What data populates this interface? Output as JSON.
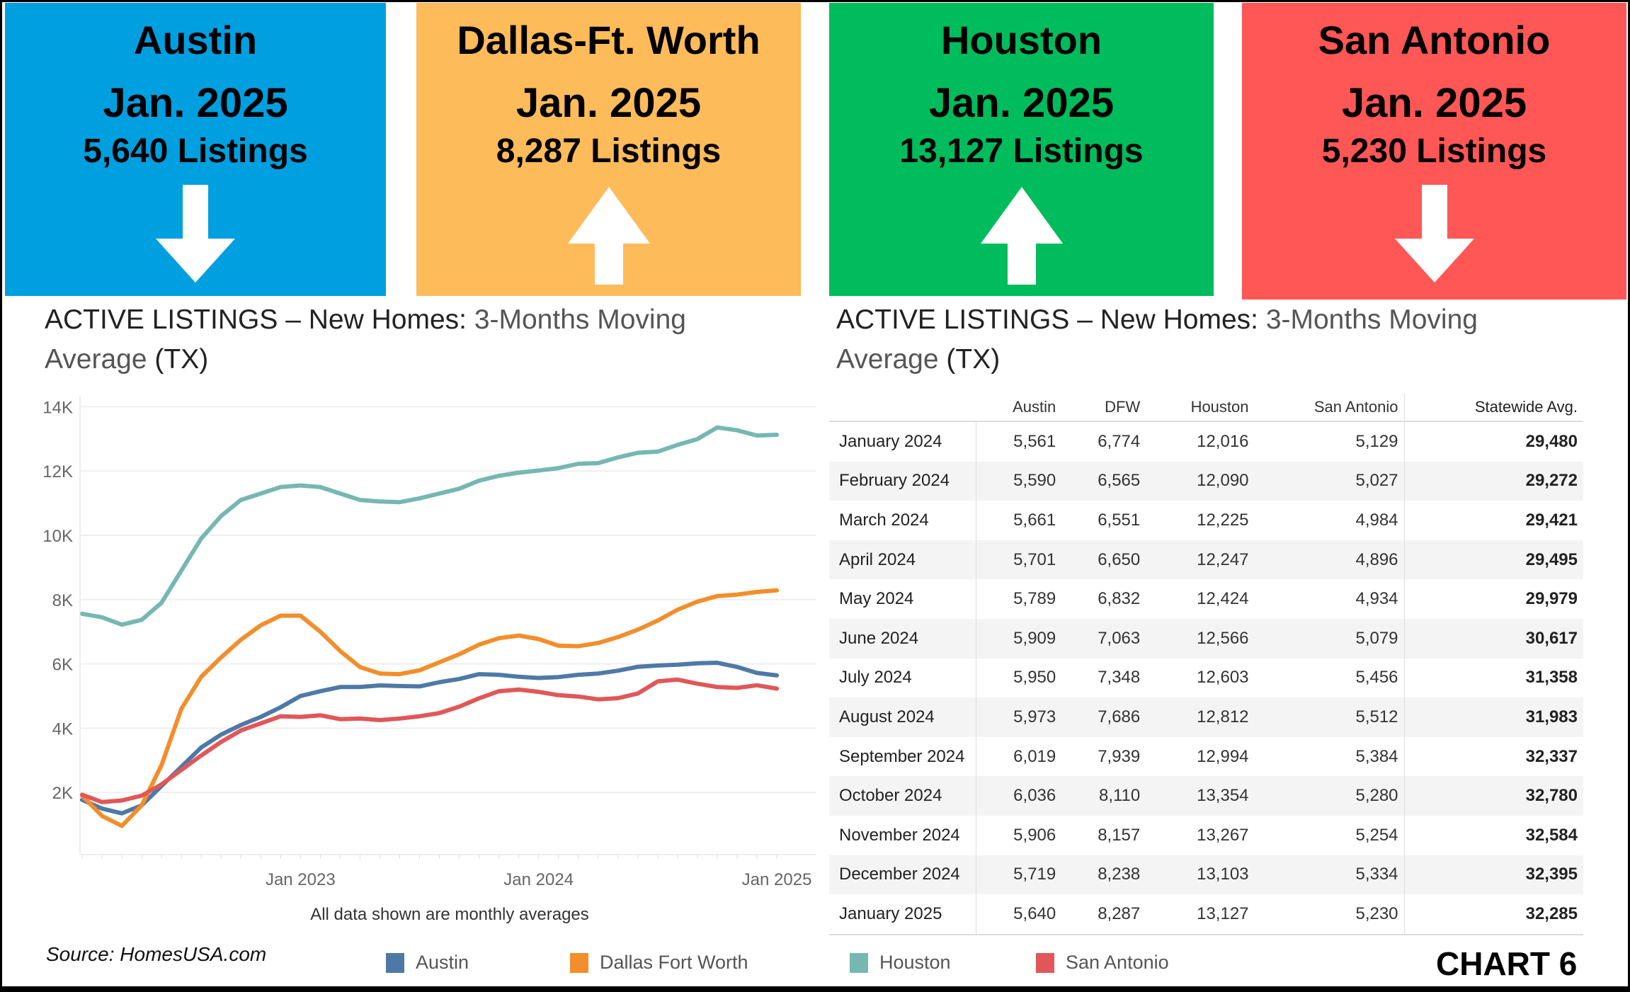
{
  "summary_boxes": [
    {
      "city": "Austin",
      "date": "Jan. 2025",
      "listings": "5,640 Listings",
      "trend": "down",
      "color": "#009fdf"
    },
    {
      "city": "Dallas-Ft. Worth",
      "date": "Jan. 2025",
      "listings": "8,287 Listings",
      "trend": "up",
      "color": "#fdbb5a"
    },
    {
      "city": "Houston",
      "date": "Jan. 2025",
      "listings": "13,127 Listings",
      "trend": "up",
      "color": "#00bc5c"
    },
    {
      "city": "San Antonio",
      "date": "Jan. 2025",
      "listings": "5,230 Listings",
      "trend": "down",
      "color": "#ff5656"
    }
  ],
  "left_title": {
    "main": "ACTIVE LISTINGS – New Homes: ",
    "rest1": "3-Months  Moving",
    "rest2": "Average",
    "suffix": " (TX)"
  },
  "right_title": {
    "main": "ACTIVE LISTINGS – New Homes: ",
    "rest1": "3-Months  Moving",
    "rest2": "Average",
    "suffix": " (TX)"
  },
  "chart_data": {
    "type": "line",
    "x_start": "2022-02",
    "x_end": "2025-01",
    "x_tick_labels": [
      "Jan 2023",
      "Jan 2024",
      "Jan 2025"
    ],
    "y_tick_labels": [
      "2K",
      "4K",
      "6K",
      "8K",
      "10K",
      "12K",
      "14K"
    ],
    "ylim": [
      0,
      14500
    ],
    "grid": true,
    "note": "All data shown are monthly averages",
    "legend_position": "bottom",
    "series": [
      {
        "name": "Austin",
        "color": "#4e79a7",
        "values": [
          1770,
          1500,
          1350,
          1600,
          2200,
          2800,
          3400,
          3800,
          4100,
          4350,
          4650,
          5000,
          5150,
          5280,
          5280,
          5330,
          5310,
          5300,
          5430,
          5530,
          5680,
          5660,
          5600,
          5561,
          5590,
          5661,
          5701,
          5789,
          5909,
          5950,
          5973,
          6019,
          6036,
          5906,
          5719,
          5640
        ]
      },
      {
        "name": "Dallas Fort Worth",
        "color": "#f28e2b",
        "values": [
          1900,
          1270,
          960,
          1600,
          2850,
          4600,
          5600,
          6200,
          6750,
          7200,
          7500,
          7500,
          7000,
          6400,
          5900,
          5700,
          5680,
          5800,
          6050,
          6300,
          6600,
          6800,
          6880,
          6774,
          6565,
          6551,
          6650,
          6832,
          7063,
          7348,
          7686,
          7939,
          8110,
          8157,
          8238,
          8287
        ]
      },
      {
        "name": "Houston",
        "color": "#76b7b2",
        "values": [
          7560,
          7450,
          7220,
          7370,
          7900,
          8900,
          9900,
          10600,
          11100,
          11300,
          11500,
          11550,
          11500,
          11300,
          11100,
          11050,
          11030,
          11150,
          11300,
          11450,
          11700,
          11850,
          11950,
          12016,
          12090,
          12225,
          12247,
          12424,
          12566,
          12603,
          12812,
          12994,
          13354,
          13267,
          13103,
          13127
        ]
      },
      {
        "name": "San Antonio",
        "color": "#e15759",
        "values": [
          1930,
          1700,
          1750,
          1900,
          2250,
          2700,
          3150,
          3570,
          3930,
          4150,
          4370,
          4350,
          4400,
          4280,
          4300,
          4250,
          4300,
          4370,
          4470,
          4670,
          4930,
          5150,
          5200,
          5129,
          5027,
          4984,
          4896,
          4934,
          5079,
          5456,
          5512,
          5384,
          5280,
          5254,
          5334,
          5230
        ]
      }
    ]
  },
  "table": {
    "headers": [
      "",
      "Austin",
      "DFW",
      "Houston",
      "San Antonio",
      "Statewide Avg."
    ],
    "rows": [
      [
        "January 2024",
        "5,561",
        "6,774",
        "12,016",
        "5,129",
        "29,480"
      ],
      [
        "February 2024",
        "5,590",
        "6,565",
        "12,090",
        "5,027",
        "29,272"
      ],
      [
        "March 2024",
        "5,661",
        "6,551",
        "12,225",
        "4,984",
        "29,421"
      ],
      [
        "April 2024",
        "5,701",
        "6,650",
        "12,247",
        "4,896",
        "29,495"
      ],
      [
        "May 2024",
        "5,789",
        "6,832",
        "12,424",
        "4,934",
        "29,979"
      ],
      [
        "June 2024",
        "5,909",
        "7,063",
        "12,566",
        "5,079",
        "30,617"
      ],
      [
        "July 2024",
        "5,950",
        "7,348",
        "12,603",
        "5,456",
        "31,358"
      ],
      [
        "August 2024",
        "5,973",
        "7,686",
        "12,812",
        "5,512",
        "31,983"
      ],
      [
        "September 2024",
        "6,019",
        "7,939",
        "12,994",
        "5,384",
        "32,337"
      ],
      [
        "October 2024",
        "6,036",
        "8,110",
        "13,354",
        "5,280",
        "32,780"
      ],
      [
        "November 2024",
        "5,906",
        "8,157",
        "13,267",
        "5,254",
        "32,584"
      ],
      [
        "December 2024",
        "5,719",
        "8,238",
        "13,103",
        "5,334",
        "32,395"
      ],
      [
        "January 2025",
        "5,640",
        "8,287",
        "13,127",
        "5,230",
        "32,285"
      ]
    ]
  },
  "source": "Source: HomesUSA.com",
  "chart_label": "CHART 6"
}
